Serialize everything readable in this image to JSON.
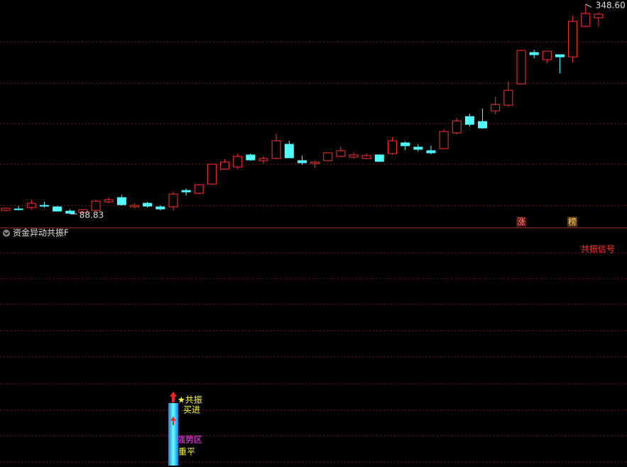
{
  "chart_data": {
    "type": "candlestick",
    "ylim": [
      72.09,
      353.88
    ],
    "up_color": "#ff3232",
    "down_color": "#54ffff",
    "open": [
      93.23,
      94.99,
      96.75,
      99.39,
      97.63,
      92.35,
      90.59,
      93.23,
      103.79,
      109.07,
      97.63,
      102.03,
      97.63,
      97.63,
      117.88,
      114.36,
      125.81,
      144.3,
      146.94,
      161.91,
      154.87,
      157.51,
      175.12,
      154.87,
      151.35,
      154.87,
      160.15,
      159.27,
      157.51,
      161.91,
      163.67,
      176.88,
      171.6,
      167.19,
      169.84,
      189.21,
      209.46,
      203.3,
      216.51,
      223.55,
      249.97,
      288.72,
      279.91,
      286.07,
      283.43,
      321.3,
      331.87
    ],
    "high": [
      96.75,
      98.51,
      106.43,
      103.79,
      98.51,
      94.99,
      94.99,
      106.43,
      109.07,
      112.6,
      102.03,
      103.79,
      99.39,
      116.12,
      120.52,
      125.81,
      150.46,
      156.63,
      163.67,
      163.67,
      160.15,
      188.33,
      179.52,
      161.03,
      154.87,
      165.43,
      172.48,
      165.43,
      163.67,
      162.79,
      183.92,
      178.64,
      175.12,
      173.36,
      193.61,
      207.7,
      212.98,
      219.15,
      234.12,
      252.61,
      292.24,
      292.24,
      290.48,
      286.07,
      334.51,
      348.6,
      338.91
    ],
    "low": [
      92.35,
      93.23,
      94.11,
      96.75,
      92.35,
      88.83,
      89.71,
      92.35,
      102.03,
      99.39,
      95.87,
      96.75,
      93.23,
      93.23,
      111.72,
      113.48,
      124.92,
      143.42,
      144.3,
      154.87,
      151.35,
      156.63,
      158.39,
      149.58,
      146.06,
      153.99,
      159.27,
      157.51,
      156.63,
      153.11,
      161.91,
      168.07,
      166.31,
      162.79,
      168.95,
      187.45,
      197.13,
      194.49,
      212.1,
      221.79,
      249.97,
      281.67,
      275.51,
      263.18,
      276.39,
      320.42,
      321.3
    ],
    "close": [
      95.87,
      94.11,
      102.03,
      98.51,
      92.35,
      89.71,
      94.11,
      104.67,
      106.43,
      100.27,
      99.39,
      98.51,
      94.99,
      113.48,
      116.12,
      124.92,
      150.46,
      153.11,
      160.15,
      155.75,
      157.51,
      179.52,
      158.39,
      152.23,
      153.11,
      164.55,
      167.19,
      161.91,
      161.03,
      153.99,
      179.52,
      173.36,
      168.95,
      164.55,
      190.97,
      204.18,
      199.78,
      195.37,
      224.43,
      241.96,
      291.36,
      286.07,
      290.48,
      283.43,
      327.46,
      337.15,
      336.27
    ],
    "high_label": "348.60",
    "low_label": "88.83",
    "badges": [
      "涨",
      "榜"
    ],
    "indicator": {
      "title": "资金异动共振F",
      "legend": "共振信号",
      "labels": [
        "★共振",
        "买进",
        "强势区",
        "重平"
      ]
    }
  }
}
